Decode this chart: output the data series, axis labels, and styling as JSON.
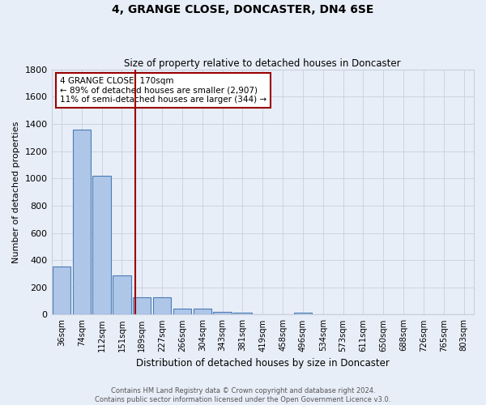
{
  "title": "4, GRANGE CLOSE, DONCASTER, DN4 6SE",
  "subtitle": "Size of property relative to detached houses in Doncaster",
  "xlabel": "Distribution of detached houses by size in Doncaster",
  "ylabel": "Number of detached properties",
  "footer_line1": "Contains HM Land Registry data © Crown copyright and database right 2024.",
  "footer_line2": "Contains public sector information licensed under the Open Government Licence v3.0.",
  "bar_labels": [
    "36sqm",
    "74sqm",
    "112sqm",
    "151sqm",
    "189sqm",
    "227sqm",
    "266sqm",
    "304sqm",
    "343sqm",
    "381sqm",
    "419sqm",
    "458sqm",
    "496sqm",
    "534sqm",
    "573sqm",
    "611sqm",
    "650sqm",
    "688sqm",
    "726sqm",
    "765sqm",
    "803sqm"
  ],
  "bar_values": [
    355,
    1360,
    1020,
    285,
    130,
    130,
    42,
    42,
    20,
    15,
    0,
    0,
    15,
    0,
    0,
    0,
    0,
    0,
    0,
    0,
    0
  ],
  "bar_color": "#aec6e8",
  "bar_edge_color": "#4c7db5",
  "bg_color": "#e8eef8",
  "grid_color": "#c8d0dc",
  "vline_x": 3.65,
  "vline_color": "#990000",
  "annotation_text": "4 GRANGE CLOSE: 170sqm\n← 89% of detached houses are smaller (2,907)\n11% of semi-detached houses are larger (344) →",
  "annotation_box_color": "white",
  "annotation_box_edge": "#990000",
  "ylim": [
    0,
    1800
  ],
  "yticks": [
    0,
    200,
    400,
    600,
    800,
    1000,
    1200,
    1400,
    1600,
    1800
  ]
}
